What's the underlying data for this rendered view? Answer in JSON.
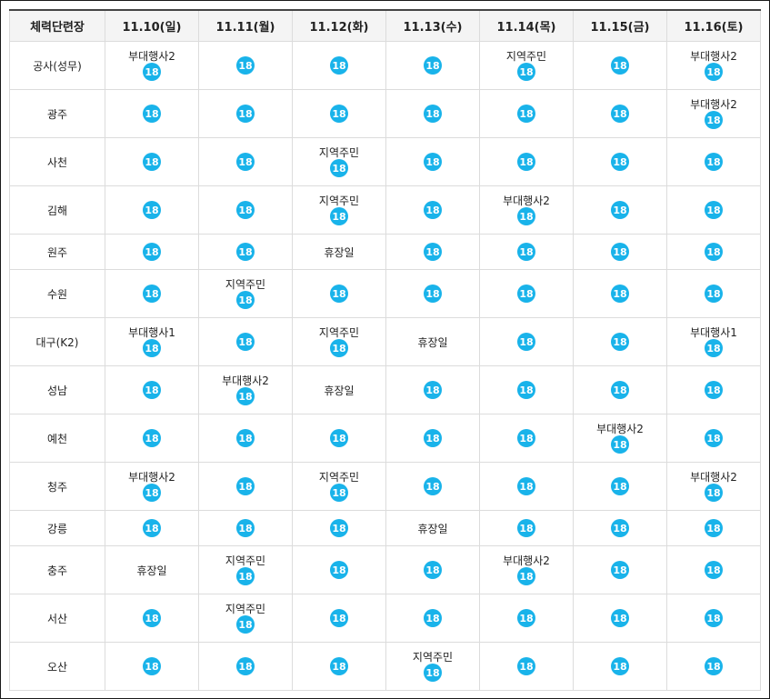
{
  "table": {
    "corner": "체력단련장",
    "dates": [
      "11.10(일)",
      "11.11(월)",
      "11.12(화)",
      "11.13(수)",
      "11.14(목)",
      "11.15(금)",
      "11.16(토)"
    ],
    "rows": [
      {
        "name": "공사(성무)",
        "h": 53,
        "cells": [
          {
            "label": "부대행사2",
            "count": "18"
          },
          {
            "count": "18"
          },
          {
            "count": "18"
          },
          {
            "count": "18"
          },
          {
            "label": "지역주민",
            "count": "18"
          },
          {
            "count": "18"
          },
          {
            "label": "부대행사2",
            "count": "18"
          }
        ]
      },
      {
        "name": "광주",
        "h": 53,
        "cells": [
          {
            "count": "18"
          },
          {
            "count": "18"
          },
          {
            "count": "18"
          },
          {
            "count": "18"
          },
          {
            "count": "18"
          },
          {
            "count": "18"
          },
          {
            "label": "부대행사2",
            "count": "18"
          }
        ]
      },
      {
        "name": "사천",
        "h": 53,
        "cells": [
          {
            "count": "18"
          },
          {
            "count": "18"
          },
          {
            "label": "지역주민",
            "count": "18"
          },
          {
            "count": "18"
          },
          {
            "count": "18"
          },
          {
            "count": "18"
          },
          {
            "count": "18"
          }
        ]
      },
      {
        "name": "김해",
        "h": 53,
        "cells": [
          {
            "count": "18"
          },
          {
            "count": "18"
          },
          {
            "label": "지역주민",
            "count": "18"
          },
          {
            "count": "18"
          },
          {
            "label": "부대행사2",
            "count": "18"
          },
          {
            "count": "18"
          },
          {
            "count": "18"
          }
        ]
      },
      {
        "name": "원주",
        "h": 39,
        "cells": [
          {
            "count": "18"
          },
          {
            "count": "18"
          },
          {
            "closed": "휴장일"
          },
          {
            "count": "18"
          },
          {
            "count": "18"
          },
          {
            "count": "18"
          },
          {
            "count": "18"
          }
        ]
      },
      {
        "name": "수원",
        "h": 53,
        "cells": [
          {
            "count": "18"
          },
          {
            "label": "지역주민",
            "count": "18"
          },
          {
            "count": "18"
          },
          {
            "count": "18"
          },
          {
            "count": "18"
          },
          {
            "count": "18"
          },
          {
            "count": "18"
          }
        ]
      },
      {
        "name": "대구(K2)",
        "h": 53,
        "cells": [
          {
            "label": "부대행사1",
            "count": "18"
          },
          {
            "count": "18"
          },
          {
            "label": "지역주민",
            "count": "18"
          },
          {
            "closed": "휴장일"
          },
          {
            "count": "18"
          },
          {
            "count": "18"
          },
          {
            "label": "부대행사1",
            "count": "18"
          }
        ]
      },
      {
        "name": "성남",
        "h": 53,
        "cells": [
          {
            "count": "18"
          },
          {
            "label": "부대행사2",
            "count": "18"
          },
          {
            "closed": "휴장일"
          },
          {
            "count": "18"
          },
          {
            "count": "18"
          },
          {
            "count": "18"
          },
          {
            "count": "18"
          }
        ]
      },
      {
        "name": "예천",
        "h": 53,
        "cells": [
          {
            "count": "18"
          },
          {
            "count": "18"
          },
          {
            "count": "18"
          },
          {
            "count": "18"
          },
          {
            "count": "18"
          },
          {
            "label": "부대행사2",
            "count": "18"
          },
          {
            "count": "18"
          }
        ]
      },
      {
        "name": "청주",
        "h": 53,
        "cells": [
          {
            "label": "부대행사2",
            "count": "18"
          },
          {
            "count": "18"
          },
          {
            "label": "지역주민",
            "count": "18"
          },
          {
            "count": "18"
          },
          {
            "count": "18"
          },
          {
            "count": "18"
          },
          {
            "label": "부대행사2",
            "count": "18"
          }
        ]
      },
      {
        "name": "강릉",
        "h": 39,
        "cells": [
          {
            "count": "18"
          },
          {
            "count": "18"
          },
          {
            "count": "18"
          },
          {
            "closed": "휴장일"
          },
          {
            "count": "18"
          },
          {
            "count": "18"
          },
          {
            "count": "18"
          }
        ]
      },
      {
        "name": "충주",
        "h": 53,
        "cells": [
          {
            "closed": "휴장일"
          },
          {
            "label": "지역주민",
            "count": "18"
          },
          {
            "count": "18"
          },
          {
            "count": "18"
          },
          {
            "label": "부대행사2",
            "count": "18"
          },
          {
            "count": "18"
          },
          {
            "count": "18"
          }
        ]
      },
      {
        "name": "서산",
        "h": 53,
        "cells": [
          {
            "count": "18"
          },
          {
            "label": "지역주민",
            "count": "18"
          },
          {
            "count": "18"
          },
          {
            "count": "18"
          },
          {
            "count": "18"
          },
          {
            "count": "18"
          },
          {
            "count": "18"
          }
        ]
      },
      {
        "name": "오산",
        "h": 53,
        "cells": [
          {
            "count": "18"
          },
          {
            "count": "18"
          },
          {
            "count": "18"
          },
          {
            "label": "지역주민",
            "count": "18"
          },
          {
            "count": "18"
          },
          {
            "count": "18"
          },
          {
            "count": "18"
          }
        ]
      }
    ]
  },
  "colors": {
    "badge": "#19b3ea",
    "header_bg": "#f4f4f4"
  }
}
